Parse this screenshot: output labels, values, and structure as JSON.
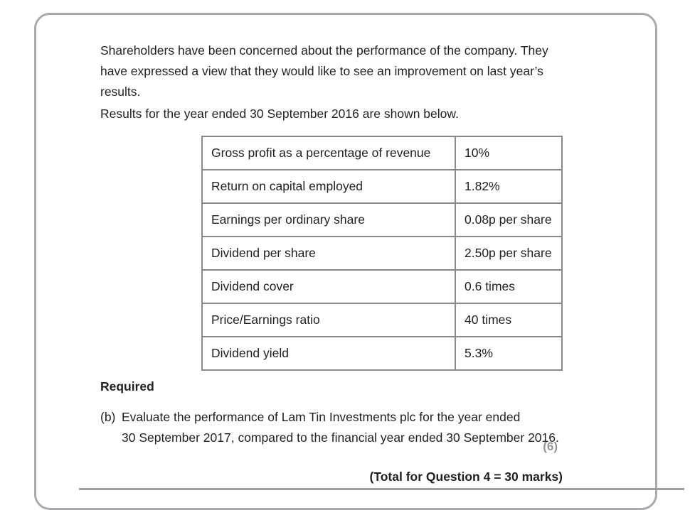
{
  "content": {
    "paragraph1_lines": [
      "Shareholders have been concerned about the performance of the company. They",
      "have expressed a view that they would like to see an improvement on last year’s",
      "results."
    ],
    "paragraph2": "Results for the year ended 30 September 2016 are shown below.",
    "required_label": "Required",
    "part_b": {
      "label": "(b)",
      "line1": "Evaluate the performance of Lam Tin Investments plc for the year ended",
      "line2": "30 September 2017, compared to the financial year ended 30 September 2016."
    },
    "marks": "(6)",
    "total": "(Total for Question 4 = 30 marks)"
  },
  "table": {
    "rows": [
      {
        "label": "Gross profit as a percentage of revenue",
        "value": "10%"
      },
      {
        "label": "Return on capital employed",
        "value": "1.82%"
      },
      {
        "label": "Earnings per ordinary share",
        "value": "0.08p per share"
      },
      {
        "label": "Dividend per share",
        "value": "2.50p per share"
      },
      {
        "label": "Dividend cover",
        "value": "0.6 times"
      },
      {
        "label": "Price/Earnings ratio",
        "value": "40 times"
      },
      {
        "label": "Dividend yield",
        "value": "5.3%"
      }
    ]
  },
  "colors": {
    "text": "#231f20",
    "frame_border": "#a8aaad",
    "table_border": "#87898c",
    "marks_gray": "#939598",
    "rule_gray": "#9d9fa2"
  }
}
